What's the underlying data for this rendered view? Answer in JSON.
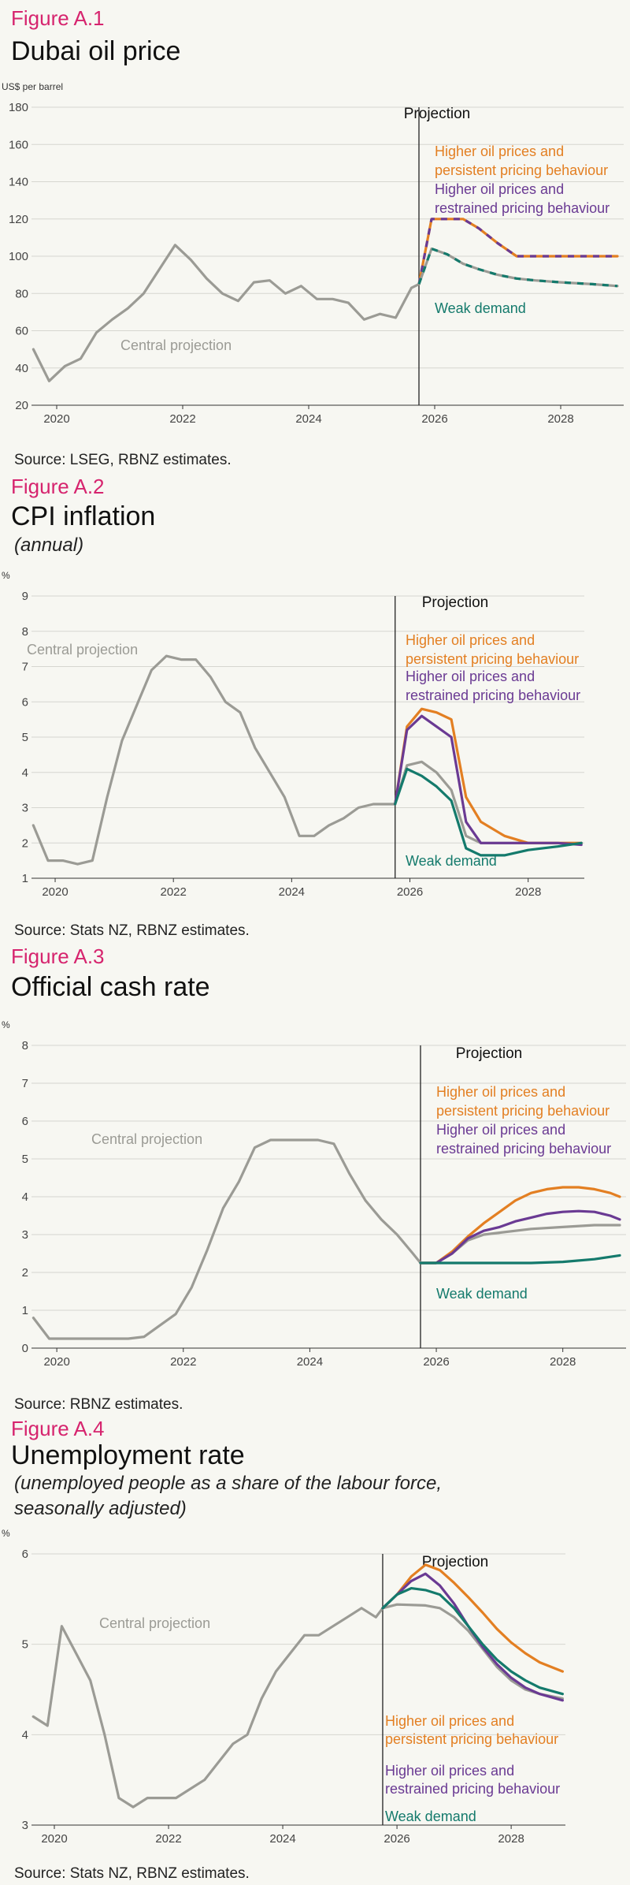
{
  "colors": {
    "central": "#9b9b95",
    "high_persistent": "#e37f22",
    "high_restrained": "#6a3a93",
    "weak": "#147a6c",
    "figure_label": "#d6246e",
    "grid": "#d6d6d0"
  },
  "chart_data": [
    {
      "type": "line",
      "label": "Figure A.1",
      "title": "Dubai oil price",
      "subtitle": "",
      "ylabel": "US$ per barrel",
      "ylim": [
        20,
        180
      ],
      "yticks": [
        20,
        40,
        60,
        80,
        100,
        120,
        140,
        160,
        180
      ],
      "xlim": [
        2019.6,
        2029
      ],
      "xticks": [
        2020,
        2022,
        2024,
        2026,
        2028
      ],
      "projection_x": 2025.75,
      "projection_label": "Projection",
      "annotations": [
        {
          "text": "Higher oil prices and",
          "series": "high_persistent"
        },
        {
          "text": "persistent pricing behaviour",
          "series": "high_persistent"
        },
        {
          "text": "Higher oil prices and",
          "series": "high_restrained"
        },
        {
          "text": "restrained pricing behaviour",
          "series": "high_restrained"
        },
        {
          "text": "Weak demand",
          "series": "weak"
        },
        {
          "text": "Central projection",
          "series": "central"
        }
      ],
      "series": [
        {
          "key": "central",
          "style": "solid",
          "x": [
            2019.63,
            2019.88,
            2020.13,
            2020.38,
            2020.63,
            2020.88,
            2021.13,
            2021.38,
            2021.63,
            2021.88,
            2022.13,
            2022.38,
            2022.63,
            2022.88,
            2023.13,
            2023.38,
            2023.63,
            2023.88,
            2024.13,
            2024.38,
            2024.63,
            2024.88,
            2025.13,
            2025.38,
            2025.63,
            2025.75
          ],
          "values": [
            50,
            33,
            41,
            45,
            59,
            66,
            72,
            80,
            93,
            106,
            98,
            88,
            80,
            76,
            86,
            87,
            80,
            84,
            77,
            77,
            75,
            66,
            69,
            67,
            83,
            85
          ]
        },
        {
          "key": "high_persistent",
          "style": "solid",
          "x": [
            2025.75,
            2025.95,
            2026.2,
            2026.45,
            2026.7,
            2027.0,
            2027.3,
            2027.6,
            2028.0,
            2028.5,
            2028.9
          ],
          "values": [
            85,
            120,
            120,
            120,
            115,
            107,
            100,
            100,
            100,
            100,
            100
          ]
        },
        {
          "key": "high_restrained",
          "style": "dash",
          "x": [
            2025.75,
            2025.95,
            2026.2,
            2026.45,
            2026.7,
            2027.0,
            2027.3,
            2027.6,
            2028.0,
            2028.5,
            2028.9
          ],
          "values": [
            85,
            120,
            120,
            120,
            115,
            107,
            100,
            100,
            100,
            100,
            100
          ]
        },
        {
          "key": "central",
          "style": "solid",
          "x": [
            2025.75,
            2025.95,
            2026.2,
            2026.45,
            2026.7,
            2027.0,
            2027.3,
            2027.6,
            2028.0,
            2028.5,
            2028.9
          ],
          "values": [
            85,
            104,
            101,
            96,
            93,
            90,
            88,
            87,
            86,
            85,
            84
          ]
        },
        {
          "key": "weak",
          "style": "dash",
          "x": [
            2025.75,
            2025.95,
            2026.2,
            2026.45,
            2026.7,
            2027.0,
            2027.3,
            2027.6,
            2028.0,
            2028.5,
            2028.9
          ],
          "values": [
            85,
            104,
            101,
            96,
            93,
            90,
            88,
            87,
            86,
            85,
            84
          ]
        }
      ],
      "source": "Source: LSEG, RBNZ estimates."
    },
    {
      "type": "line",
      "label": "Figure A.2",
      "title": "CPI inflation",
      "subtitle": "(annual)",
      "ylabel": "%",
      "ylim": [
        1,
        9
      ],
      "yticks": [
        1,
        2,
        3,
        4,
        5,
        6,
        7,
        8,
        9
      ],
      "xlim": [
        2019.6,
        2028.95
      ],
      "xticks": [
        2020,
        2022,
        2024,
        2026,
        2028
      ],
      "projection_x": 2025.75,
      "projection_label": "Projection",
      "annotations": [
        {
          "text": "Higher oil prices and",
          "series": "high_persistent"
        },
        {
          "text": "persistent pricing behaviour",
          "series": "high_persistent"
        },
        {
          "text": "Higher oil prices and",
          "series": "high_restrained"
        },
        {
          "text": "restrained pricing behaviour",
          "series": "high_restrained"
        },
        {
          "text": "Weak demand",
          "series": "weak"
        },
        {
          "text": "Central projection",
          "series": "central"
        }
      ],
      "series": [
        {
          "key": "central",
          "x": [
            2019.63,
            2019.88,
            2020.13,
            2020.38,
            2020.63,
            2020.88,
            2021.13,
            2021.38,
            2021.63,
            2021.88,
            2022.13,
            2022.38,
            2022.63,
            2022.88,
            2023.13,
            2023.38,
            2023.63,
            2023.88,
            2024.13,
            2024.38,
            2024.63,
            2024.88,
            2025.13,
            2025.38,
            2025.63,
            2025.75,
            2025.95,
            2026.2,
            2026.45,
            2026.7,
            2026.95,
            2027.2,
            2027.6,
            2028.0,
            2028.5,
            2028.9
          ],
          "values": [
            2.5,
            1.5,
            1.5,
            1.4,
            1.5,
            3.3,
            4.9,
            5.9,
            6.9,
            7.3,
            7.2,
            7.2,
            6.7,
            6.0,
            5.7,
            4.7,
            4.0,
            3.3,
            2.2,
            2.2,
            2.5,
            2.7,
            3.0,
            3.1,
            3.1,
            3.1,
            4.2,
            4.3,
            4.0,
            3.5,
            2.2,
            2.0,
            2.0,
            2.0,
            2.0,
            2.0
          ]
        },
        {
          "key": "high_persistent",
          "x": [
            2025.75,
            2025.95,
            2026.2,
            2026.45,
            2026.7,
            2026.95,
            2027.2,
            2027.6,
            2028.0,
            2028.5,
            2028.9
          ],
          "values": [
            3.1,
            5.3,
            5.8,
            5.7,
            5.5,
            3.3,
            2.6,
            2.2,
            2.0,
            2.0,
            2.0
          ]
        },
        {
          "key": "high_restrained",
          "x": [
            2025.75,
            2025.95,
            2026.2,
            2026.45,
            2026.7,
            2026.95,
            2027.2,
            2027.6,
            2028.0,
            2028.5,
            2028.9
          ],
          "values": [
            3.1,
            5.2,
            5.6,
            5.3,
            5.0,
            2.6,
            2.0,
            2.0,
            2.0,
            2.0,
            1.95
          ]
        },
        {
          "key": "weak",
          "x": [
            2025.75,
            2025.95,
            2026.2,
            2026.45,
            2026.7,
            2026.95,
            2027.2,
            2027.6,
            2028.0,
            2028.5,
            2028.9
          ],
          "values": [
            3.1,
            4.1,
            3.9,
            3.6,
            3.2,
            1.85,
            1.65,
            1.65,
            1.8,
            1.9,
            2.0
          ]
        }
      ],
      "source": "Source: Stats NZ, RBNZ estimates."
    },
    {
      "type": "line",
      "label": "Figure A.3",
      "title": "Official cash rate",
      "subtitle": "",
      "ylabel": "%",
      "ylim": [
        0,
        8
      ],
      "yticks": [
        0,
        1,
        2,
        3,
        4,
        5,
        6,
        7,
        8
      ],
      "xlim": [
        2019.6,
        2029
      ],
      "xticks": [
        2020,
        2022,
        2024,
        2026,
        2028
      ],
      "projection_x": 2025.75,
      "projection_label": "Projection",
      "annotations": [
        {
          "text": "Higher oil prices and",
          "series": "high_persistent"
        },
        {
          "text": "persistent pricing behaviour",
          "series": "high_persistent"
        },
        {
          "text": "Higher oil prices and",
          "series": "high_restrained"
        },
        {
          "text": "restrained pricing behaviour",
          "series": "high_restrained"
        },
        {
          "text": "Weak demand",
          "series": "weak"
        },
        {
          "text": "Central projection",
          "series": "central"
        }
      ],
      "series": [
        {
          "key": "central",
          "x": [
            2019.63,
            2019.88,
            2020.13,
            2020.38,
            2020.63,
            2020.88,
            2021.13,
            2021.38,
            2021.63,
            2021.88,
            2022.13,
            2022.38,
            2022.63,
            2022.88,
            2023.13,
            2023.38,
            2023.63,
            2023.88,
            2024.13,
            2024.38,
            2024.63,
            2024.88,
            2025.13,
            2025.38,
            2025.63,
            2025.75
          ],
          "values": [
            0.8,
            0.25,
            0.25,
            0.25,
            0.25,
            0.25,
            0.25,
            0.3,
            0.6,
            0.9,
            1.6,
            2.6,
            3.7,
            4.4,
            5.3,
            5.5,
            5.5,
            5.5,
            5.5,
            5.4,
            4.6,
            3.9,
            3.4,
            3.0,
            2.5,
            2.25
          ]
        },
        {
          "key": "central",
          "x": [
            2025.75,
            2026.0,
            2026.25,
            2026.5,
            2026.75,
            2027.0,
            2027.5,
            2028.0,
            2028.5,
            2028.9
          ],
          "values": [
            2.25,
            2.25,
            2.5,
            2.85,
            3.0,
            3.05,
            3.15,
            3.2,
            3.25,
            3.25
          ]
        },
        {
          "key": "high_persistent",
          "x": [
            2025.75,
            2026.0,
            2026.25,
            2026.5,
            2026.75,
            2027.0,
            2027.25,
            2027.5,
            2027.75,
            2028.0,
            2028.25,
            2028.5,
            2028.75,
            2028.9
          ],
          "values": [
            2.25,
            2.25,
            2.55,
            2.95,
            3.3,
            3.6,
            3.9,
            4.1,
            4.2,
            4.25,
            4.25,
            4.2,
            4.1,
            4.0
          ]
        },
        {
          "key": "high_restrained",
          "x": [
            2025.75,
            2026.0,
            2026.25,
            2026.5,
            2026.75,
            2027.0,
            2027.25,
            2027.5,
            2027.75,
            2028.0,
            2028.25,
            2028.5,
            2028.75,
            2028.9
          ],
          "values": [
            2.25,
            2.25,
            2.5,
            2.9,
            3.1,
            3.2,
            3.35,
            3.45,
            3.55,
            3.6,
            3.62,
            3.6,
            3.5,
            3.4
          ]
        },
        {
          "key": "weak",
          "x": [
            2025.75,
            2026.0,
            2026.5,
            2027.0,
            2027.5,
            2028.0,
            2028.5,
            2028.9
          ],
          "values": [
            2.25,
            2.25,
            2.25,
            2.25,
            2.25,
            2.28,
            2.35,
            2.45
          ]
        }
      ],
      "source": "Source: RBNZ estimates."
    },
    {
      "type": "line",
      "label": "Figure A.4",
      "title": "Unemployment rate",
      "subtitle": "(unemployed people as a share of the labour force,",
      "subtitle2": "seasonally adjusted)",
      "ylabel": "%",
      "ylim": [
        3,
        6
      ],
      "yticks": [
        3,
        4,
        5,
        6
      ],
      "xlim": [
        2019.6,
        2028.95
      ],
      "xticks": [
        2020,
        2022,
        2024,
        2026,
        2028
      ],
      "projection_x": 2025.75,
      "projection_label": "Projection",
      "annotations": [
        {
          "text": "Higher oil prices and",
          "series": "high_persistent"
        },
        {
          "text": "persistent pricing behaviour",
          "series": "high_persistent"
        },
        {
          "text": "Higher oil prices and",
          "series": "high_restrained"
        },
        {
          "text": "restrained pricing behaviour",
          "series": "high_restrained"
        },
        {
          "text": "Weak demand",
          "series": "weak"
        },
        {
          "text": "Central projection",
          "series": "central"
        }
      ],
      "series": [
        {
          "key": "central",
          "x": [
            2019.63,
            2019.88,
            2020.13,
            2020.38,
            2020.63,
            2020.88,
            2021.13,
            2021.38,
            2021.63,
            2021.88,
            2022.13,
            2022.38,
            2022.63,
            2022.88,
            2023.13,
            2023.38,
            2023.63,
            2023.88,
            2024.13,
            2024.38,
            2024.63,
            2024.88,
            2025.13,
            2025.38,
            2025.63,
            2025.75
          ],
          "values": [
            4.2,
            4.1,
            5.2,
            4.9,
            4.6,
            4.0,
            3.3,
            3.2,
            3.3,
            3.3,
            3.3,
            3.4,
            3.5,
            3.7,
            3.9,
            4.0,
            4.4,
            4.7,
            4.9,
            5.1,
            5.1,
            5.2,
            5.3,
            5.4,
            5.3,
            5.4
          ]
        },
        {
          "key": "central",
          "x": [
            2025.75,
            2026.0,
            2026.5,
            2026.75,
            2027.0,
            2027.25,
            2027.5,
            2027.75,
            2028.0,
            2028.25,
            2028.5,
            2028.9
          ],
          "values": [
            5.4,
            5.44,
            5.43,
            5.4,
            5.3,
            5.15,
            4.95,
            4.75,
            4.6,
            4.5,
            4.45,
            4.4
          ]
        },
        {
          "key": "high_persistent",
          "x": [
            2025.75,
            2026.0,
            2026.25,
            2026.5,
            2026.75,
            2027.0,
            2027.25,
            2027.5,
            2027.75,
            2028.0,
            2028.25,
            2028.5,
            2028.9
          ],
          "values": [
            5.4,
            5.55,
            5.75,
            5.88,
            5.82,
            5.68,
            5.52,
            5.35,
            5.17,
            5.02,
            4.9,
            4.8,
            4.7
          ]
        },
        {
          "key": "high_restrained",
          "x": [
            2025.75,
            2026.0,
            2026.25,
            2026.5,
            2026.75,
            2027.0,
            2027.25,
            2027.5,
            2027.75,
            2028.0,
            2028.25,
            2028.5,
            2028.9
          ],
          "values": [
            5.4,
            5.55,
            5.7,
            5.78,
            5.65,
            5.45,
            5.2,
            4.97,
            4.78,
            4.63,
            4.52,
            4.45,
            4.38
          ]
        },
        {
          "key": "weak",
          "x": [
            2025.75,
            2026.0,
            2026.25,
            2026.5,
            2026.75,
            2027.0,
            2027.25,
            2027.5,
            2027.75,
            2028.0,
            2028.25,
            2028.5,
            2028.9
          ],
          "values": [
            5.4,
            5.55,
            5.62,
            5.6,
            5.55,
            5.4,
            5.2,
            5.0,
            4.83,
            4.7,
            4.6,
            4.52,
            4.45
          ]
        }
      ],
      "source": "Source: Stats NZ, RBNZ estimates."
    }
  ]
}
